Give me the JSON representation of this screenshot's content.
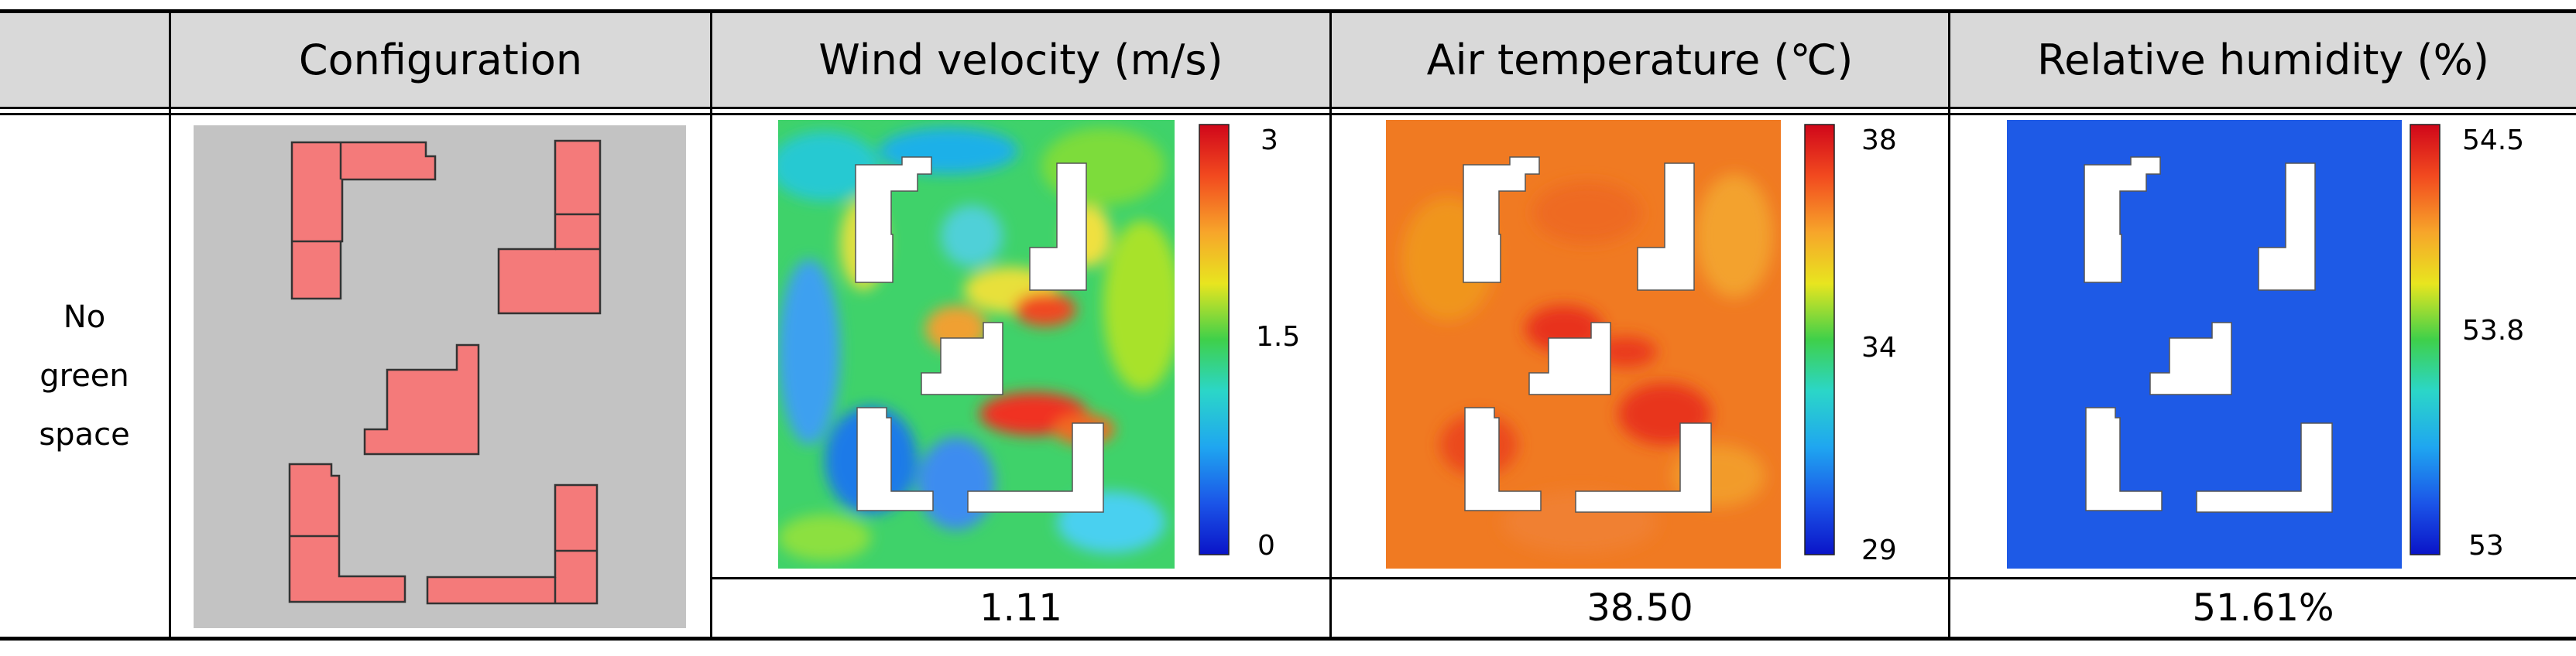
{
  "table": {
    "headers": [
      "",
      "Configuration",
      "Wind velocity (m/s)",
      "Air temperature (℃)",
      "Relative humidity (%)"
    ],
    "row_label": [
      "No",
      "green",
      "space"
    ],
    "values": [
      "1.11",
      "38.50",
      "51.61%"
    ]
  },
  "colorbars": {
    "wind": {
      "max": "3",
      "mid": "1.5",
      "min": "0"
    },
    "temperature": {
      "max": "38",
      "mid": "34",
      "min": "29"
    },
    "humidity": {
      "max": "54.5",
      "mid": "53.8",
      "min": "53"
    }
  },
  "colors": {
    "header_bg": "#d9d9d9",
    "config_bg": "#c3c3c3",
    "building_fill": "#f47a7a",
    "building_stroke": "#333333",
    "humidity_field": "#1e5ae6",
    "temperature_field": "#f07a22"
  }
}
